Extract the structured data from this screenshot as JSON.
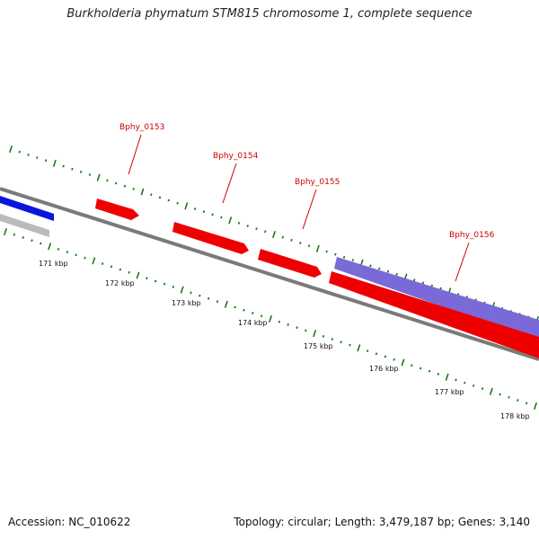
{
  "title": "Burkholderia phymatum STM815 chromosome 1, complete sequence",
  "footer": {
    "accession": "Accession: NC_010622",
    "summary": "Topology: circular; Length: 3,479,187 bp; Genes: 3,140"
  },
  "colors": {
    "backbone": "#7a7a7a",
    "gene_red": "#ee0000",
    "gene_blue": "#0a14e0",
    "gene_gray": "#bbbbbb",
    "gene_purple": "#7a6ad8",
    "tick_green": "#1a7a1a",
    "label_red": "#cc0000"
  },
  "scale_labels": [
    "171 kbp",
    "172 kbp",
    "173 kbp",
    "174 kbp",
    "175 kbp",
    "176 kbp",
    "177 kbp",
    "178 kbp"
  ],
  "genes": [
    {
      "name": "Bphy_0153",
      "strand": "+"
    },
    {
      "name": "Bphy_0154",
      "strand": "+"
    },
    {
      "name": "Bphy_0155",
      "strand": "+"
    },
    {
      "name": "Bphy_0156",
      "strand": "+"
    }
  ]
}
